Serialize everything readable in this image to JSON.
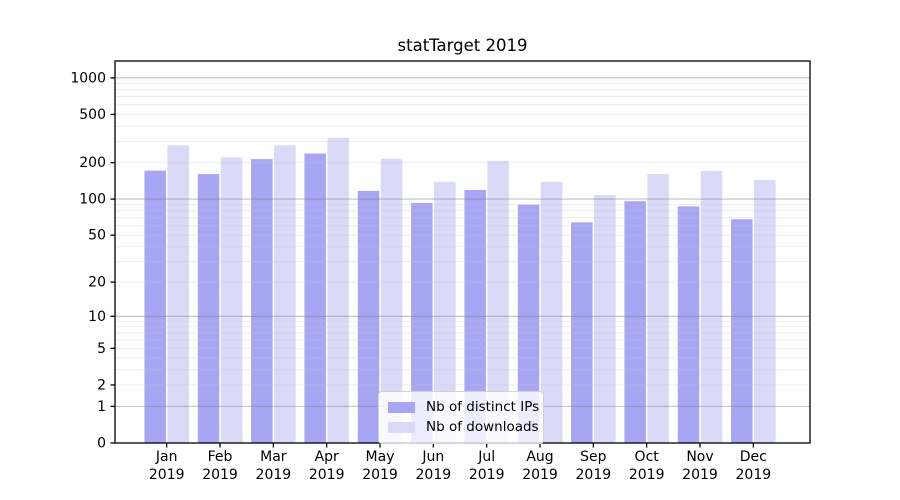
{
  "figure": {
    "title": "statTarget 2019",
    "background_color": "#ffffff"
  },
  "chart_data": {
    "type": "bar",
    "title": "statTarget 2019",
    "scale": "log1p",
    "grid": true,
    "legend_position": "inside-bottom-center",
    "categories": [
      "Jan",
      "Feb",
      "Mar",
      "Apr",
      "May",
      "Jun",
      "Jul",
      "Aug",
      "Sep",
      "Oct",
      "Nov",
      "Dec"
    ],
    "category_year": "2019",
    "y_ticks": [
      0,
      1,
      2,
      5,
      10,
      20,
      50,
      100,
      200,
      500,
      1000
    ],
    "y_major_gridlines": [
      1,
      10,
      100,
      1000
    ],
    "ylim": [
      0,
      1380
    ],
    "series": [
      {
        "name": "Nb of distinct IPs",
        "color": "#a6a6f2",
        "values": [
          172,
          161,
          214,
          238,
          117,
          93,
          119,
          90,
          64,
          96,
          87,
          68
        ]
      },
      {
        "name": "Nb of downloads",
        "color": "#d9d9f8",
        "values": [
          278,
          221,
          278,
          321,
          216,
          139,
          207,
          139,
          108,
          161,
          171,
          144
        ]
      }
    ],
    "colors": {
      "axis": "#000000",
      "tick_label": "#000000",
      "major_grid": "rgba(120,120,120,0.45)",
      "minor_grid": "rgba(200,200,200,0.30)"
    }
  }
}
